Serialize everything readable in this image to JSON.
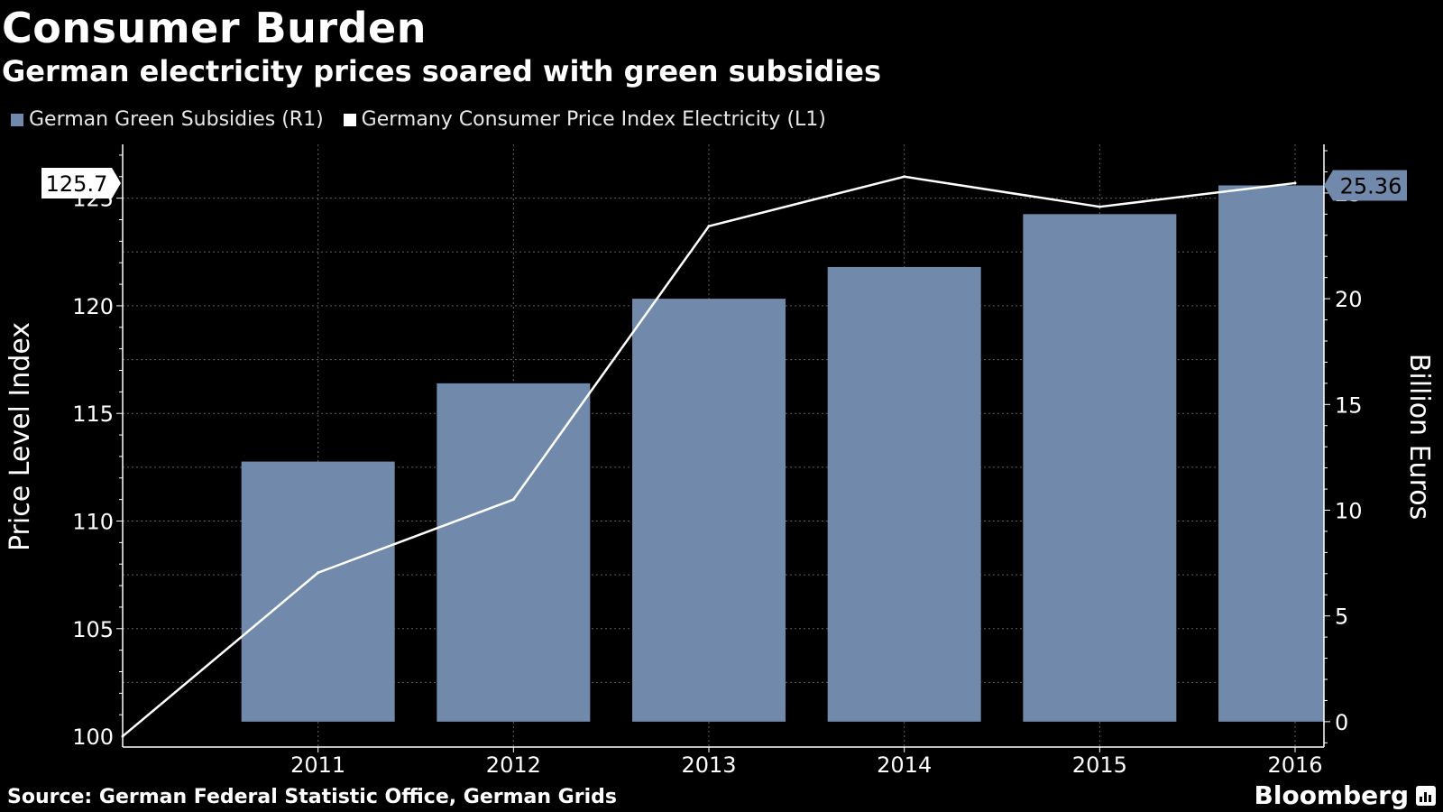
{
  "header": {
    "title": "Consumer Burden",
    "subtitle": "German electricity prices soared with green subsidies"
  },
  "legend": {
    "items": [
      {
        "label": "German Green Subsidies (R1)",
        "color": "#7189aa"
      },
      {
        "label": "Germany Consumer Price Index Electricity (L1)",
        "color": "#ffffff"
      }
    ]
  },
  "footer": {
    "source": "Source: German Federal Statistic Office, German Grids",
    "brand": "Bloomberg"
  },
  "chart_data": {
    "type": "bar",
    "title": "Consumer Burden",
    "subtitle": "German electricity prices soared with green subsidies",
    "categories": [
      "2011",
      "2012",
      "2013",
      "2014",
      "2015",
      "2016"
    ],
    "x_start": "2010",
    "left_axis": {
      "label": "Price Level Index",
      "range": [
        99.5,
        127.5
      ],
      "ticks": [
        100,
        105,
        110,
        115,
        120,
        125
      ]
    },
    "right_axis": {
      "label": "Billion Euros",
      "range": [
        -1.2,
        27.3
      ],
      "ticks": [
        0,
        5,
        10,
        15,
        20,
        25
      ]
    },
    "series": [
      {
        "name": "German Green Subsidies (R1)",
        "type": "bar",
        "axis": "right",
        "color": "#7189aa",
        "values": [
          12.3,
          16.0,
          20.0,
          21.5,
          24.0,
          25.36
        ]
      },
      {
        "name": "Germany Consumer Price Index Electricity (L1)",
        "type": "line",
        "axis": "left",
        "color": "#ffffff",
        "x": [
          "2010",
          "2011",
          "2012",
          "2013",
          "2014",
          "2015",
          "2016"
        ],
        "values": [
          100.0,
          107.6,
          111.0,
          123.7,
          126.0,
          124.6,
          125.7
        ]
      }
    ],
    "callouts": {
      "left": "125.7",
      "right": "25.36"
    },
    "grid": true,
    "legend_position": "top-left"
  }
}
